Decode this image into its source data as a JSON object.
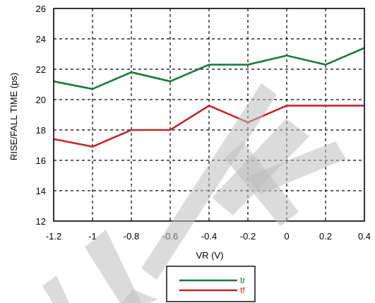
{
  "chart_data": {
    "type": "line",
    "title": "",
    "xlabel": "VR (V)",
    "ylabel": "RISE/FALL TIME (ps)",
    "xlim": [
      -1.2,
      0.4
    ],
    "ylim": [
      12,
      26
    ],
    "x": [
      -1.2,
      -1.0,
      -0.8,
      -0.6,
      -0.4,
      -0.2,
      0.0,
      0.2,
      0.4
    ],
    "x_tick_labels": [
      "-1.2",
      "-1",
      "-0.8",
      "-0.6",
      "-0.4",
      "-0.2",
      "0",
      "0.2",
      "0.4"
    ],
    "y_ticks": [
      12,
      14,
      16,
      18,
      20,
      22,
      24,
      26
    ],
    "y_tick_labels": [
      "12",
      "14",
      "16",
      "18",
      "20",
      "22",
      "24",
      "26"
    ],
    "grid": true,
    "legend_position": "bottom-center",
    "series": [
      {
        "name": "tr",
        "color": "#1a7a3c",
        "values": [
          21.2,
          20.7,
          21.8,
          21.2,
          22.3,
          22.3,
          22.9,
          22.3,
          23.4
        ]
      },
      {
        "name": "tf",
        "color": "#c0282d",
        "values": [
          17.4,
          16.9,
          18.0,
          18.0,
          19.6,
          18.5,
          19.6,
          19.6,
          19.6
        ]
      }
    ]
  }
}
